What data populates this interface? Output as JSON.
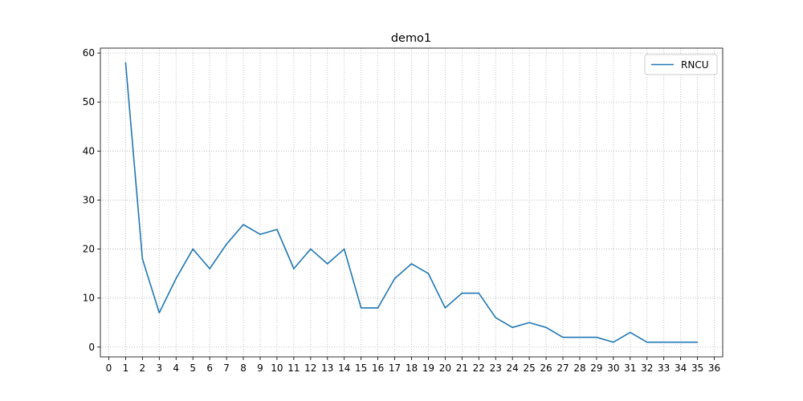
{
  "chart_data": {
    "type": "line",
    "title": "demo1",
    "xlabel": "",
    "ylabel": "",
    "xlim": [
      -0.5,
      36.5
    ],
    "ylim": [
      -2,
      61
    ],
    "x_ticks": [
      0,
      1,
      2,
      3,
      4,
      5,
      6,
      7,
      8,
      9,
      10,
      11,
      12,
      13,
      14,
      15,
      16,
      17,
      18,
      19,
      20,
      21,
      22,
      23,
      24,
      25,
      26,
      27,
      28,
      29,
      30,
      31,
      32,
      33,
      34,
      35,
      36
    ],
    "y_ticks": [
      0,
      10,
      20,
      30,
      40,
      50,
      60
    ],
    "grid": true,
    "grid_style": "dotted",
    "legend_position": "top-right",
    "series": [
      {
        "name": "RNCU",
        "color": "#1f77b4",
        "x": [
          1,
          2,
          3,
          4,
          5,
          6,
          7,
          8,
          9,
          10,
          11,
          12,
          13,
          14,
          15,
          16,
          17,
          18,
          19,
          20,
          21,
          22,
          23,
          24,
          25,
          26,
          27,
          28,
          29,
          30,
          31,
          32,
          33,
          34,
          35
        ],
        "values": [
          58,
          18,
          7,
          14,
          20,
          16,
          21,
          25,
          23,
          24,
          16,
          20,
          17,
          20,
          8,
          8,
          14,
          17,
          15,
          8,
          11,
          11,
          6,
          4,
          5,
          4,
          2,
          2,
          2,
          1,
          3,
          1,
          1,
          1,
          1
        ]
      }
    ]
  }
}
